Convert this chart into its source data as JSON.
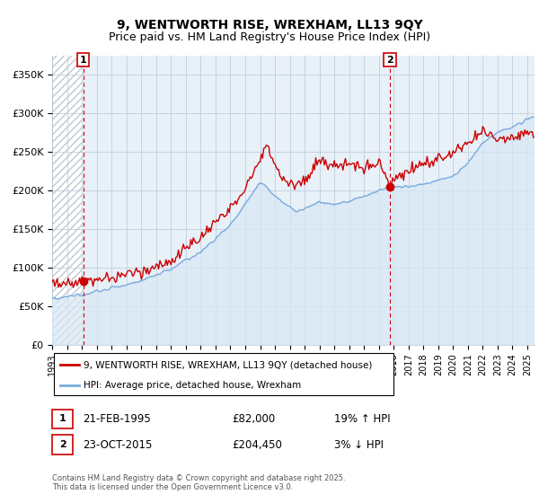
{
  "title_line1": "9, WENTWORTH RISE, WREXHAM, LL13 9QY",
  "title_line2": "Price paid vs. HM Land Registry's House Price Index (HPI)",
  "legend_line1": "9, WENTWORTH RISE, WREXHAM, LL13 9QY (detached house)",
  "legend_line2": "HPI: Average price, detached house, Wrexham",
  "sale1_date": "21-FEB-1995",
  "sale1_price": "£82,000",
  "sale1_hpi": "19% ↑ HPI",
  "sale2_date": "23-OCT-2015",
  "sale2_price": "£204,450",
  "sale2_hpi": "3% ↓ HPI",
  "footnote": "Contains HM Land Registry data © Crown copyright and database right 2025.\nThis data is licensed under the Open Government Licence v3.0.",
  "price_line_color": "#cc0000",
  "hpi_line_color": "#7aaadd",
  "hpi_fill_color": "#d8e8f5",
  "sale_vline_color": "#cc0000",
  "background_color": "#e8f0f8",
  "hatch_color": "#c0c8d0",
  "ylim": [
    0,
    375000
  ],
  "yticks": [
    0,
    50000,
    100000,
    150000,
    200000,
    250000,
    300000,
    350000
  ],
  "ytick_labels": [
    "£0",
    "£50K",
    "£100K",
    "£150K",
    "£200K",
    "£250K",
    "£300K",
    "£350K"
  ],
  "grid_color": "#b8c8d8",
  "marker_label_box_color": "#cc0000",
  "sale1_x": 1995.083,
  "sale1_y": 82000,
  "sale2_x": 2015.75,
  "sale2_y": 204450,
  "x_min": 1993.0,
  "x_max": 2025.5
}
